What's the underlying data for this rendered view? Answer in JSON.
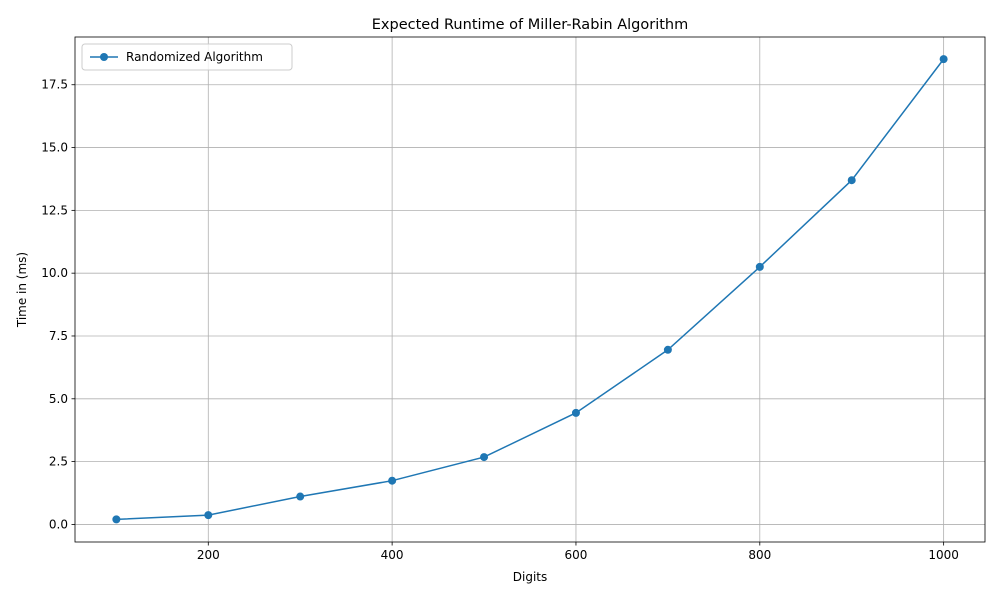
{
  "chart_data": {
    "type": "line",
    "title": "Expected Runtime of Miller-Rabin Algorithm",
    "xlabel": "Digits",
    "ylabel": "Time in (ms)",
    "xlim": [
      55,
      1045
    ],
    "ylim": [
      -0.7,
      19.4
    ],
    "xticks": [
      200,
      400,
      600,
      800,
      1000
    ],
    "yticks": [
      0.0,
      2.5,
      5.0,
      7.5,
      10.0,
      12.5,
      15.0,
      17.5
    ],
    "xtick_labels": [
      "200",
      "400",
      "600",
      "800",
      "1000"
    ],
    "ytick_labels": [
      "0.0",
      "2.5",
      "5.0",
      "7.5",
      "10.0",
      "12.5",
      "15.0",
      "17.5"
    ],
    "grid": true,
    "legend_position": "upper left",
    "series": [
      {
        "name": "Randomized Algorithm",
        "color": "#1f77b4",
        "marker": "circle",
        "x": [
          100,
          200,
          300,
          400,
          500,
          600,
          700,
          800,
          900,
          1000
        ],
        "y": [
          0.2,
          0.37,
          1.11,
          1.74,
          2.68,
          4.44,
          6.95,
          10.25,
          13.7,
          18.52
        ]
      }
    ]
  }
}
